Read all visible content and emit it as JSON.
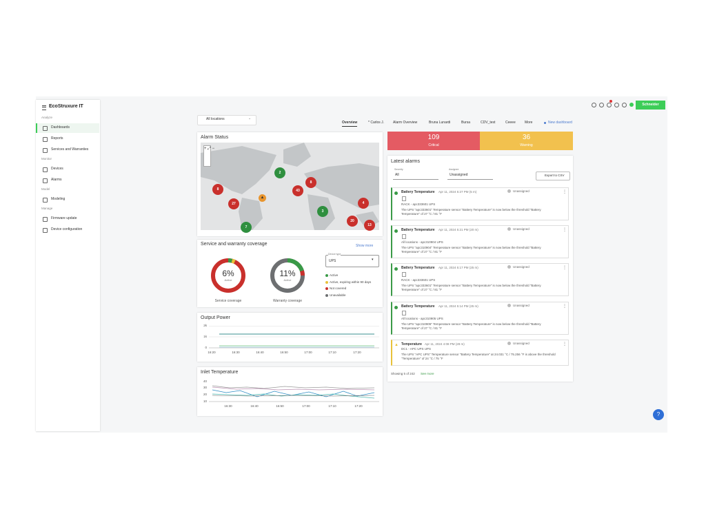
{
  "sidebar": {
    "brand": "EcoStruxure IT",
    "sections": [
      {
        "title": "Analyze",
        "items": [
          "Dashboards",
          "Reports",
          "Services and Warranties"
        ]
      },
      {
        "title": "Monitor",
        "items": [
          "Devices",
          "Alarms"
        ]
      },
      {
        "title": "Model",
        "items": [
          "Modeling"
        ]
      },
      {
        "title": "Manage",
        "items": [
          "Firmware update",
          "Device configuration"
        ]
      }
    ]
  },
  "topbar": {
    "location": "All locations",
    "tabs": [
      "Overview",
      "* Carlos J.",
      "Alarm Overview",
      "Bruna Lunardi",
      "Bursa",
      "CDV_test",
      "Ceeee",
      "More"
    ],
    "new_dashboard": "New dashboard",
    "brand": "Schneider"
  },
  "alarm_status": {
    "title": "Alarm Status",
    "clusters": [
      "2",
      "8",
      "27",
      "43",
      "8",
      "3",
      "4",
      "20",
      "13",
      "7"
    ]
  },
  "coverage": {
    "title": "Service and warranty coverage",
    "show_more": "Show more",
    "service": {
      "value": "6%",
      "status": "Active",
      "label": "Service coverage"
    },
    "warranty": {
      "value": "11%",
      "status": "Active",
      "label": "Warranty coverage"
    },
    "device_type_label": "Device type",
    "device_type": "UPS",
    "legend": [
      "Active",
      "Active, expiring within 90 days",
      "Not covered",
      "Unavailable"
    ]
  },
  "output_power": {
    "title": "Output Power",
    "yticks": [
      "2k",
      "1k",
      "0"
    ],
    "xticks": [
      "16:20",
      "16:30",
      "16:40",
      "16:50",
      "17:00",
      "17:10",
      "17:20"
    ]
  },
  "inlet_temperature": {
    "title": "Inlet Temperature",
    "yticks": [
      "40",
      "30",
      "20",
      "10"
    ],
    "xticks": [
      "16:30",
      "16:40",
      "16:50",
      "17:00",
      "17:10",
      "17:20"
    ]
  },
  "summary": {
    "critical": {
      "count": "109",
      "label": "Critical"
    },
    "warning": {
      "count": "36",
      "label": "Warning"
    }
  },
  "latest_alarms": {
    "title": "Latest alarms",
    "severity_label": "Severity",
    "severity": "All",
    "assignee_label": "Assignee",
    "assignee": "Unassigned",
    "export": "Export to CSV",
    "items": [
      {
        "name": "Battery Temperature",
        "time": "Apr 11, 2024 5:27 PM (5 m)",
        "assignee": "Unassigned",
        "location": "RACK - apc333601 UPS",
        "description": "The UPS \"apc333601\" Temperature sensor \"Battery Temperature\" is now below the threshold \"Battery Temperature\" of 27 °C / 81 °F"
      },
      {
        "name": "Battery Temperature",
        "time": "Apr 11, 2024 5:21 PM (20 m)",
        "assignee": "Unassigned",
        "location": "All locations - apc310904 UPS",
        "description": "The UPS \"apc310904\" Temperature sensor \"Battery Temperature\" is now below the threshold \"Battery Temperature\" of 27 °C / 81 °F"
      },
      {
        "name": "Battery Temperature",
        "time": "Apr 11, 2024 5:17 PM (25 m)",
        "assignee": "Unassigned",
        "location": "RACK - apc333601 UPS",
        "description": "The UPS \"apc333601\" Temperature sensor \"Battery Temperature\" is now below the threshold \"Battery Temperature\" of 27 °C / 81 °F"
      },
      {
        "name": "Battery Temperature",
        "time": "Apr 11, 2024 5:14 PM (25 m)",
        "assignee": "Unassigned",
        "location": "All locations - apc310905 UPS",
        "description": "The UPS \"apc310905\" Temperature sensor \"Battery Temperature\" is now below the threshold \"Battery Temperature\" of 27 °C / 81 °F"
      },
      {
        "name": "Temperature",
        "time": "Apr 11, 2024 4:08 PM (28 m)",
        "assignee": "Unassigned",
        "location": "DC1 - APC UPS UPS",
        "description": "The UPS \"APC UPS\" Temperature sensor \"Battery Temperature\" at 24.031 °C / 75.256 °F is above the threshold \"Temperature\" of 24 °C / 75 °F"
      }
    ],
    "showing": "Showing 5 of 242",
    "see_more": "See more"
  }
}
